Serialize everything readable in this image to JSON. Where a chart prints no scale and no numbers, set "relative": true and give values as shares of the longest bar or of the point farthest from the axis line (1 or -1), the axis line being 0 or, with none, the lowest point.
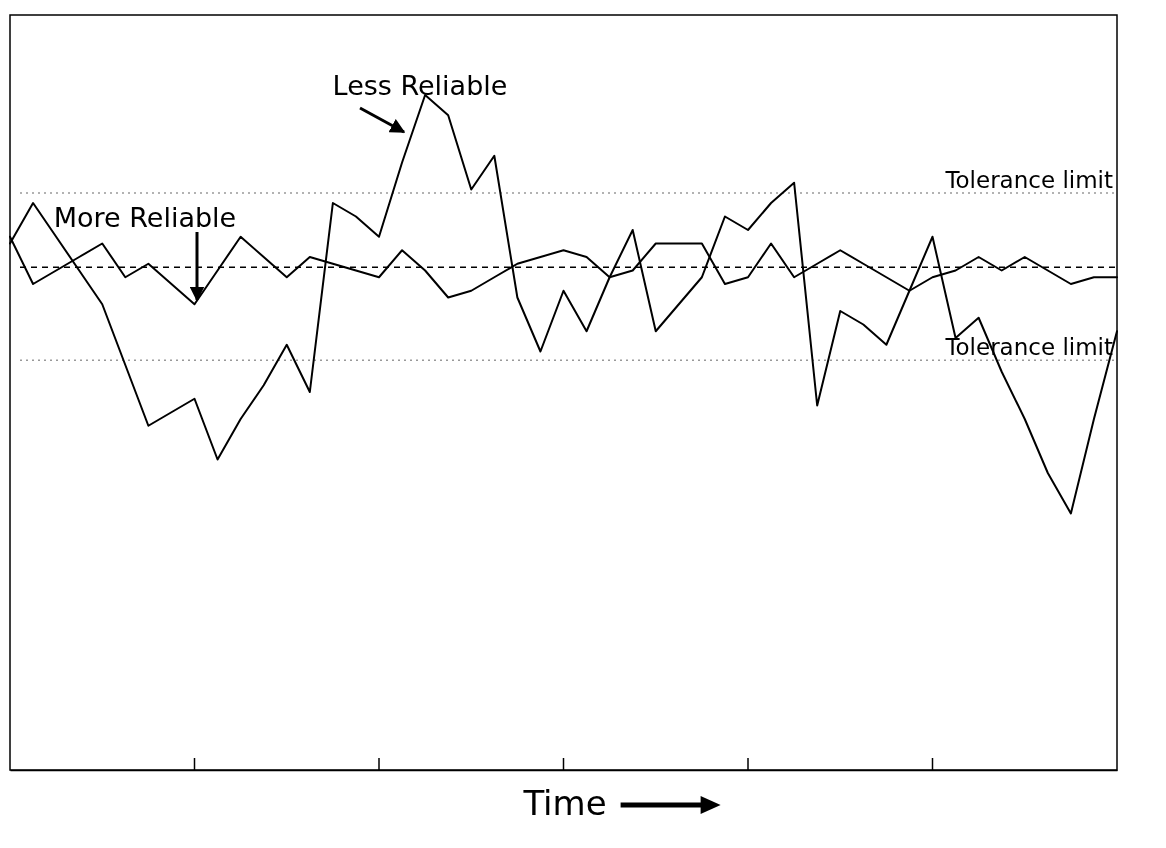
{
  "chart_data": {
    "type": "line",
    "relative": true,
    "xlabel": "Time",
    "categories": [
      null,
      null,
      null,
      null,
      null,
      null,
      null,
      null,
      null,
      null,
      null,
      null,
      null,
      null,
      null,
      null,
      null,
      null,
      null,
      null,
      null,
      null,
      null,
      null,
      null,
      null,
      null,
      null,
      null,
      null,
      null,
      null,
      null,
      null,
      null,
      null,
      null,
      null,
      null,
      null,
      null,
      null,
      null,
      null,
      null,
      null,
      null,
      null,
      null
    ],
    "line_style": "solid",
    "marker": "none",
    "series": [
      {
        "color": "#000000",
        "values": [
          0.78,
          0.84,
          0.79,
          0.74,
          0.69,
          0.6,
          0.51,
          0.53,
          0.55,
          0.46,
          0.52,
          0.57,
          0.63,
          0.56,
          0.84,
          0.82,
          0.79,
          0.9,
          1.0,
          0.97,
          0.86,
          0.91,
          0.7,
          0.62,
          0.71,
          0.65,
          0.73,
          0.8,
          0.65,
          0.69,
          0.73,
          0.82,
          0.8,
          0.84,
          0.87,
          0.54,
          0.68,
          0.66,
          0.63,
          0.71,
          0.79,
          0.64,
          0.67,
          0.59,
          0.52,
          0.44,
          0.38,
          0.52,
          0.65
        ]
      },
      {
        "color": "#000000",
        "values": [
          0.79,
          0.72,
          0.74,
          0.76,
          0.78,
          0.73,
          0.75,
          0.72,
          0.69,
          0.74,
          0.79,
          0.76,
          0.73,
          0.76,
          0.75,
          0.74,
          0.73,
          0.77,
          0.74,
          0.7,
          0.71,
          0.73,
          0.75,
          0.76,
          0.77,
          0.76,
          0.73,
          0.74,
          0.78,
          0.78,
          0.78,
          0.72,
          0.73,
          0.78,
          0.73,
          0.75,
          0.77,
          0.75,
          0.73,
          0.71,
          0.73,
          0.74,
          0.76,
          0.74,
          0.76,
          0.74,
          0.72,
          0.73,
          0.73
        ]
      }
    ],
    "ref_lines": [
      {
        "axis": "y",
        "value": 0.855,
        "label": "Tolerance limit",
        "color": "#999999",
        "line_style": "dotted"
      },
      {
        "axis": "y",
        "value": 0.745,
        "label": null,
        "color": "#000000",
        "line_style": "dashed"
      },
      {
        "axis": "y",
        "value": 0.607,
        "label": "Tolerance limit",
        "color": "#999999",
        "line_style": "dotted"
      }
    ],
    "annotations": [
      "More Reliable",
      "Less Reliable"
    ]
  }
}
